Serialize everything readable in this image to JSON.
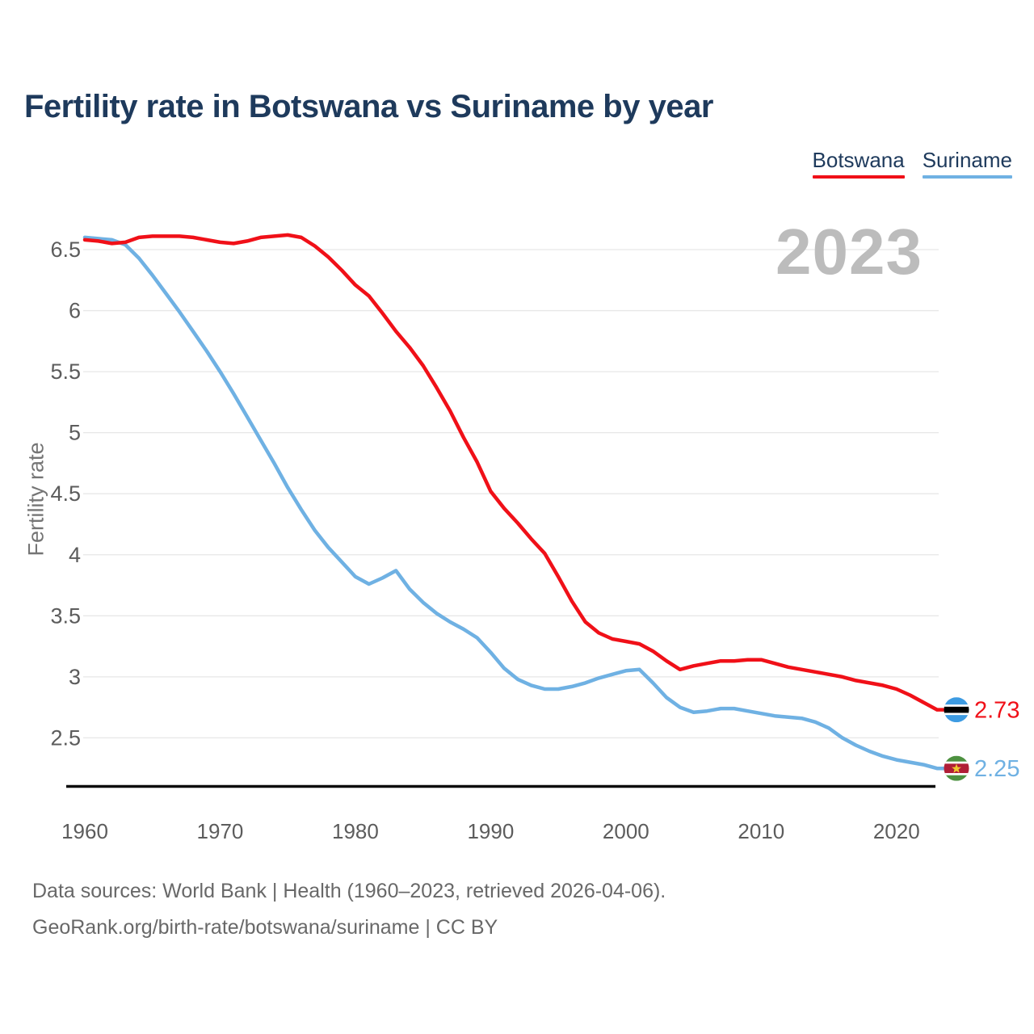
{
  "title": "Fertility rate in Botswana vs Suriname by year",
  "watermark": "2023",
  "legend": [
    {
      "label": "Botswana",
      "color": "#f01018"
    },
    {
      "label": "Suriname",
      "color": "#6fb1e3"
    }
  ],
  "footer": {
    "line1": "Data sources: World Bank | Health (1960–2023, retrieved 2026-04-06).",
    "line2": "GeoRank.org/birth-rate/botswana/suriname | CC BY"
  },
  "chart_data": {
    "type": "line",
    "title": "Fertility rate in Botswana vs Suriname by year",
    "xlabel": "",
    "ylabel": "Fertility rate",
    "x_range": [
      1960,
      2023
    ],
    "ylim": [
      2.1,
      6.7
    ],
    "grid": true,
    "x_ticks": [
      1960,
      1970,
      1980,
      1990,
      2000,
      2010,
      2020
    ],
    "y_ticks": [
      6.5,
      6,
      5.5,
      5,
      4.5,
      4,
      3.5,
      3,
      2.5
    ],
    "colors": {
      "gridline": "#e7e7e7",
      "axis_line": "#0c0c0c",
      "tick_text": "#5c5c5c"
    },
    "x": [
      1960,
      1961,
      1962,
      1963,
      1964,
      1965,
      1966,
      1967,
      1968,
      1969,
      1970,
      1971,
      1972,
      1973,
      1974,
      1975,
      1976,
      1977,
      1978,
      1979,
      1980,
      1981,
      1982,
      1983,
      1984,
      1985,
      1986,
      1987,
      1988,
      1989,
      1990,
      1991,
      1992,
      1993,
      1994,
      1995,
      1996,
      1997,
      1998,
      1999,
      2000,
      2001,
      2002,
      2003,
      2004,
      2005,
      2006,
      2007,
      2008,
      2009,
      2010,
      2011,
      2012,
      2013,
      2014,
      2015,
      2016,
      2017,
      2018,
      2019,
      2020,
      2021,
      2022,
      2023
    ],
    "series": [
      {
        "name": "Botswana",
        "color": "#f01018",
        "end_label": "2.73",
        "end_value": 2.73,
        "flag": {
          "type": "botswana",
          "bg": "#3d9be2",
          "band_outer": "#ffffff",
          "band_inner": "#000000"
        },
        "values": [
          6.58,
          6.57,
          6.55,
          6.56,
          6.6,
          6.61,
          6.61,
          6.61,
          6.6,
          6.58,
          6.56,
          6.55,
          6.57,
          6.6,
          6.61,
          6.62,
          6.6,
          6.53,
          6.44,
          6.33,
          6.21,
          6.12,
          5.98,
          5.83,
          5.7,
          5.55,
          5.37,
          5.18,
          4.96,
          4.76,
          4.52,
          4.38,
          4.26,
          4.13,
          4.01,
          3.82,
          3.62,
          3.45,
          3.36,
          3.31,
          3.29,
          3.27,
          3.21,
          3.13,
          3.06,
          3.09,
          3.11,
          3.13,
          3.13,
          3.14,
          3.14,
          3.11,
          3.08,
          3.06,
          3.04,
          3.02,
          3.0,
          2.97,
          2.95,
          2.93,
          2.9,
          2.85,
          2.79,
          2.73
        ]
      },
      {
        "name": "Suriname",
        "color": "#6fb1e3",
        "end_label": "2.25",
        "end_value": 2.25,
        "flag": {
          "type": "suriname",
          "bg": "#4d9140",
          "band_outer": "#ffffff",
          "band_inner": "#b01e36",
          "star": "#efc72e"
        },
        "values": [
          6.6,
          6.59,
          6.58,
          6.54,
          6.43,
          6.29,
          6.14,
          5.99,
          5.83,
          5.67,
          5.5,
          5.32,
          5.13,
          4.94,
          4.75,
          4.55,
          4.37,
          4.2,
          4.06,
          3.94,
          3.82,
          3.76,
          3.81,
          3.87,
          3.72,
          3.61,
          3.52,
          3.45,
          3.39,
          3.32,
          3.2,
          3.07,
          2.98,
          2.93,
          2.9,
          2.9,
          2.92,
          2.95,
          2.99,
          3.02,
          3.05,
          3.06,
          2.95,
          2.83,
          2.75,
          2.71,
          2.72,
          2.74,
          2.74,
          2.72,
          2.7,
          2.68,
          2.67,
          2.66,
          2.63,
          2.58,
          2.5,
          2.44,
          2.39,
          2.35,
          2.32,
          2.3,
          2.28,
          2.25
        ]
      }
    ]
  }
}
